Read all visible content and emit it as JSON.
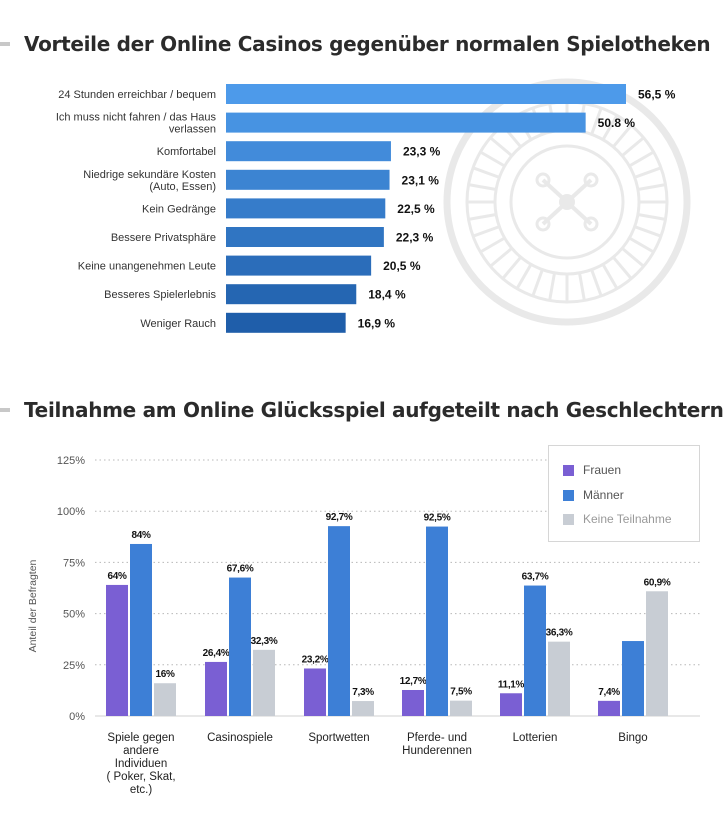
{
  "colors": {
    "frauen": "#7a5fd3",
    "maenner": "#3d7fd6",
    "keine": "#c8cdd4",
    "hbar_light": "#4d9aea",
    "hbar_dark": "#1f5eaa",
    "grid": "#b8b8b8",
    "watermark": "#e9e9e9"
  },
  "icons": {
    "watermark": "roulette-wheel-icon"
  },
  "chart1": {
    "title": "Vorteile der Online Casinos gegenüber normalen Spielotheken",
    "chart_data": {
      "type": "bar",
      "orientation": "horizontal",
      "title": "Vorteile der Online Casinos gegenüber normalen Spielotheken",
      "categories": [
        [
          "24 Stunden erreichbar / bequem"
        ],
        [
          "Ich muss nicht fahren / das Haus",
          "verlassen"
        ],
        [
          "Komfortabel"
        ],
        [
          "Niedrige sekundäre Kosten",
          "(Auto, Essen)"
        ],
        [
          "Kein Gedränge"
        ],
        [
          "Bessere Privatsphäre"
        ],
        [
          "Keine unangenehmen Leute"
        ],
        [
          "Besseres Spielerlebnis"
        ],
        [
          "Weniger Rauch"
        ]
      ],
      "values": [
        56.5,
        50.8,
        23.3,
        23.1,
        22.5,
        22.3,
        20.5,
        18.4,
        16.9
      ],
      "value_labels": [
        "56,5 %",
        "50.8 %",
        "23,3 %",
        "23,1 %",
        "22,5 %",
        "22,3 %",
        "20,5 %",
        "18,4 %",
        "16,9 %"
      ],
      "xlim": [
        0,
        56.5
      ]
    }
  },
  "chart2": {
    "title": "Teilnahme am Online Glücksspiel aufgeteilt nach Geschlechtern",
    "chart_data": {
      "type": "bar",
      "title": "Teilnahme am Online Glücksspiel aufgeteilt nach Geschlechtern",
      "ylabel": "Anteil der Befragten",
      "ylim": [
        0,
        125
      ],
      "yticks": [
        0,
        25,
        50,
        75,
        100,
        125
      ],
      "ytick_labels": [
        "0%",
        "25%",
        "50%",
        "75%",
        "100%",
        "125%"
      ],
      "grid": true,
      "legend": "top-right",
      "categories": [
        [
          "Spiele gegen",
          "andere",
          "Individuen",
          "( Poker, Skat,",
          "etc.)"
        ],
        [
          "Casinospiele"
        ],
        [
          "Sportwetten"
        ],
        [
          "Pferde- und",
          "Hunderennen"
        ],
        [
          "Lotterien"
        ],
        [
          "Bingo"
        ]
      ],
      "series": [
        {
          "name": "Frauen",
          "values": [
            64,
            26.4,
            23.2,
            12.7,
            11.1,
            7.4
          ],
          "labels": [
            "64%",
            "26,4%",
            "23,2%",
            "12,7%",
            "11,1%",
            "7,4%"
          ]
        },
        {
          "name": "Männer",
          "values": [
            84,
            67.6,
            92.7,
            92.5,
            63.7,
            36.6
          ],
          "labels": [
            "84%",
            "67,6%",
            "92,7%",
            "92,5%",
            "63,7%",
            ""
          ]
        },
        {
          "name": "Keine Teilnahme",
          "values": [
            16,
            32.3,
            7.3,
            7.5,
            36.3,
            60.9
          ],
          "labels": [
            "16%",
            "32,3%",
            "7,3%",
            "7,5%",
            "36,3%",
            "60,9%"
          ]
        }
      ]
    }
  }
}
